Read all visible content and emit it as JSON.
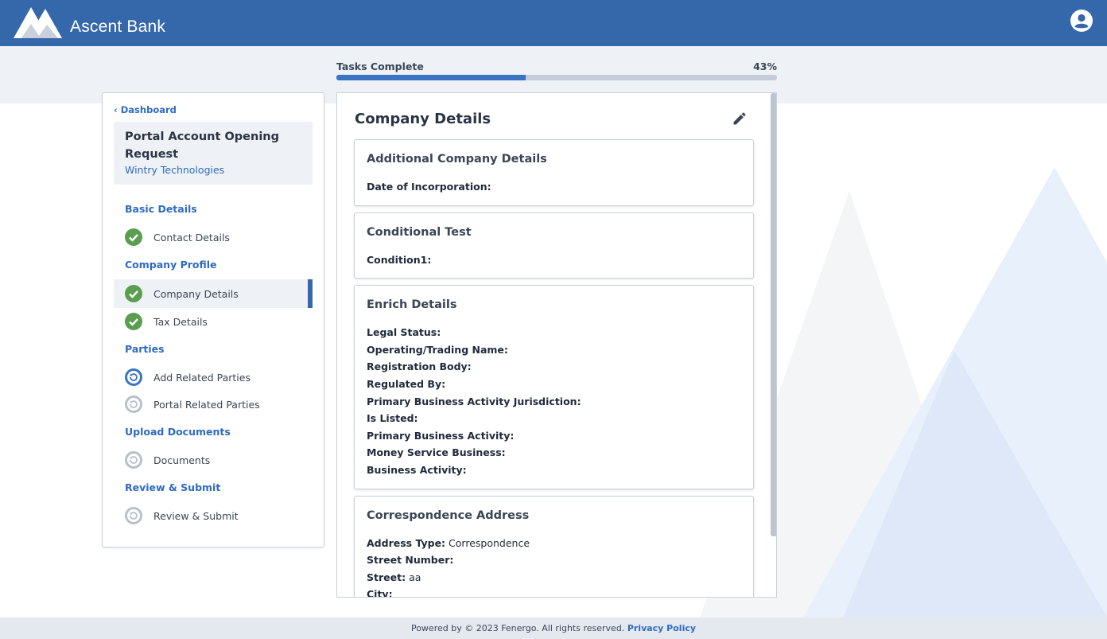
{
  "header": {
    "brand": "Ascent Bank"
  },
  "progress": {
    "label": "Tasks Complete",
    "value": 43,
    "value_label": "43%"
  },
  "sidebar": {
    "back": "Dashboard",
    "request_title": "Portal Account Opening Request",
    "company": "Wintry Technologies",
    "sections": [
      {
        "title": "Basic Details",
        "items": [
          {
            "label": "Contact Details",
            "status": "done"
          }
        ]
      },
      {
        "title": "Company Profile",
        "items": [
          {
            "label": "Company Details",
            "status": "done",
            "selected": true
          },
          {
            "label": "Tax Details",
            "status": "done"
          }
        ]
      },
      {
        "title": "Parties",
        "items": [
          {
            "label": "Add Related Parties",
            "status": "in-progress"
          },
          {
            "label": "Portal Related Parties",
            "status": "pending"
          }
        ]
      },
      {
        "title": "Upload Documents",
        "items": [
          {
            "label": "Documents",
            "status": "pending"
          }
        ]
      },
      {
        "title": "Review & Submit",
        "items": [
          {
            "label": "Review & Submit",
            "status": "pending"
          }
        ]
      }
    ]
  },
  "main": {
    "title": "Company Details",
    "cards": [
      {
        "title": "Additional Company Details",
        "fields": [
          {
            "label": "Date of Incorporation:"
          }
        ]
      },
      {
        "title": "Conditional Test",
        "fields": [
          {
            "label": "Condition1:"
          }
        ]
      },
      {
        "title": "Enrich Details",
        "fields": [
          {
            "label": "Legal Status:"
          },
          {
            "label": "Operating/Trading Name:"
          },
          {
            "label": "Registration Body:"
          },
          {
            "label": "Regulated By:"
          },
          {
            "label": "Primary Business Activity Jurisdiction:"
          },
          {
            "label": "Is Listed:"
          },
          {
            "label": "Primary Business Activity:"
          },
          {
            "label": "Money Service Business:"
          },
          {
            "label": "Business Activity:"
          }
        ]
      },
      {
        "title": "Correspondence Address",
        "fields": [
          {
            "label": "Address Type:",
            "value": "Correspondence"
          },
          {
            "label": "Street Number:"
          },
          {
            "label": "Street:",
            "value": "aa"
          },
          {
            "label": "City:"
          }
        ]
      }
    ]
  },
  "footer": {
    "text": "Powered by © 2023 Fenergo. All rights reserved.",
    "link": "Privacy Policy"
  }
}
